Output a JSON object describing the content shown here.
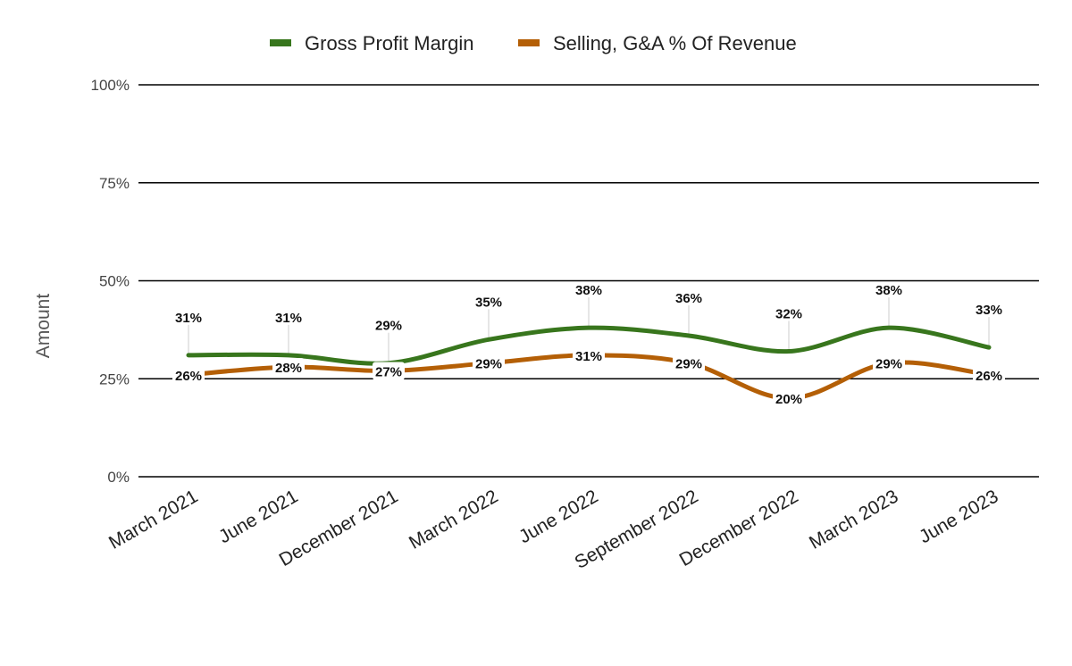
{
  "chart_data": {
    "type": "line",
    "title": "",
    "xlabel": "",
    "ylabel": "Amount",
    "categories": [
      "March 2021",
      "June 2021",
      "December 2021",
      "March 2022",
      "June 2022",
      "September 2022",
      "December 2022",
      "March 2023",
      "June 2023"
    ],
    "series": [
      {
        "name": "Gross Profit Margin",
        "color": "#38761d",
        "values": [
          31,
          31,
          29,
          35,
          38,
          36,
          32,
          38,
          33
        ],
        "labels": [
          "31%",
          "31%",
          "29%",
          "35%",
          "38%",
          "36%",
          "32%",
          "38%",
          "33%"
        ]
      },
      {
        "name": "Selling, G&A % Of Revenue",
        "color": "#b45f06",
        "values": [
          26,
          28,
          27,
          29,
          31,
          29,
          20,
          29,
          26
        ],
        "labels": [
          "26%",
          "28%",
          "27%",
          "29%",
          "31%",
          "29%",
          "20%",
          "29%",
          "26%"
        ]
      }
    ],
    "yticks": [
      0,
      25,
      50,
      75,
      100
    ],
    "ytick_labels": [
      "0%",
      "25%",
      "50%",
      "75%",
      "100%"
    ],
    "ylim": [
      0,
      100
    ],
    "grid": true,
    "smooth": true,
    "legend": "top-center"
  }
}
